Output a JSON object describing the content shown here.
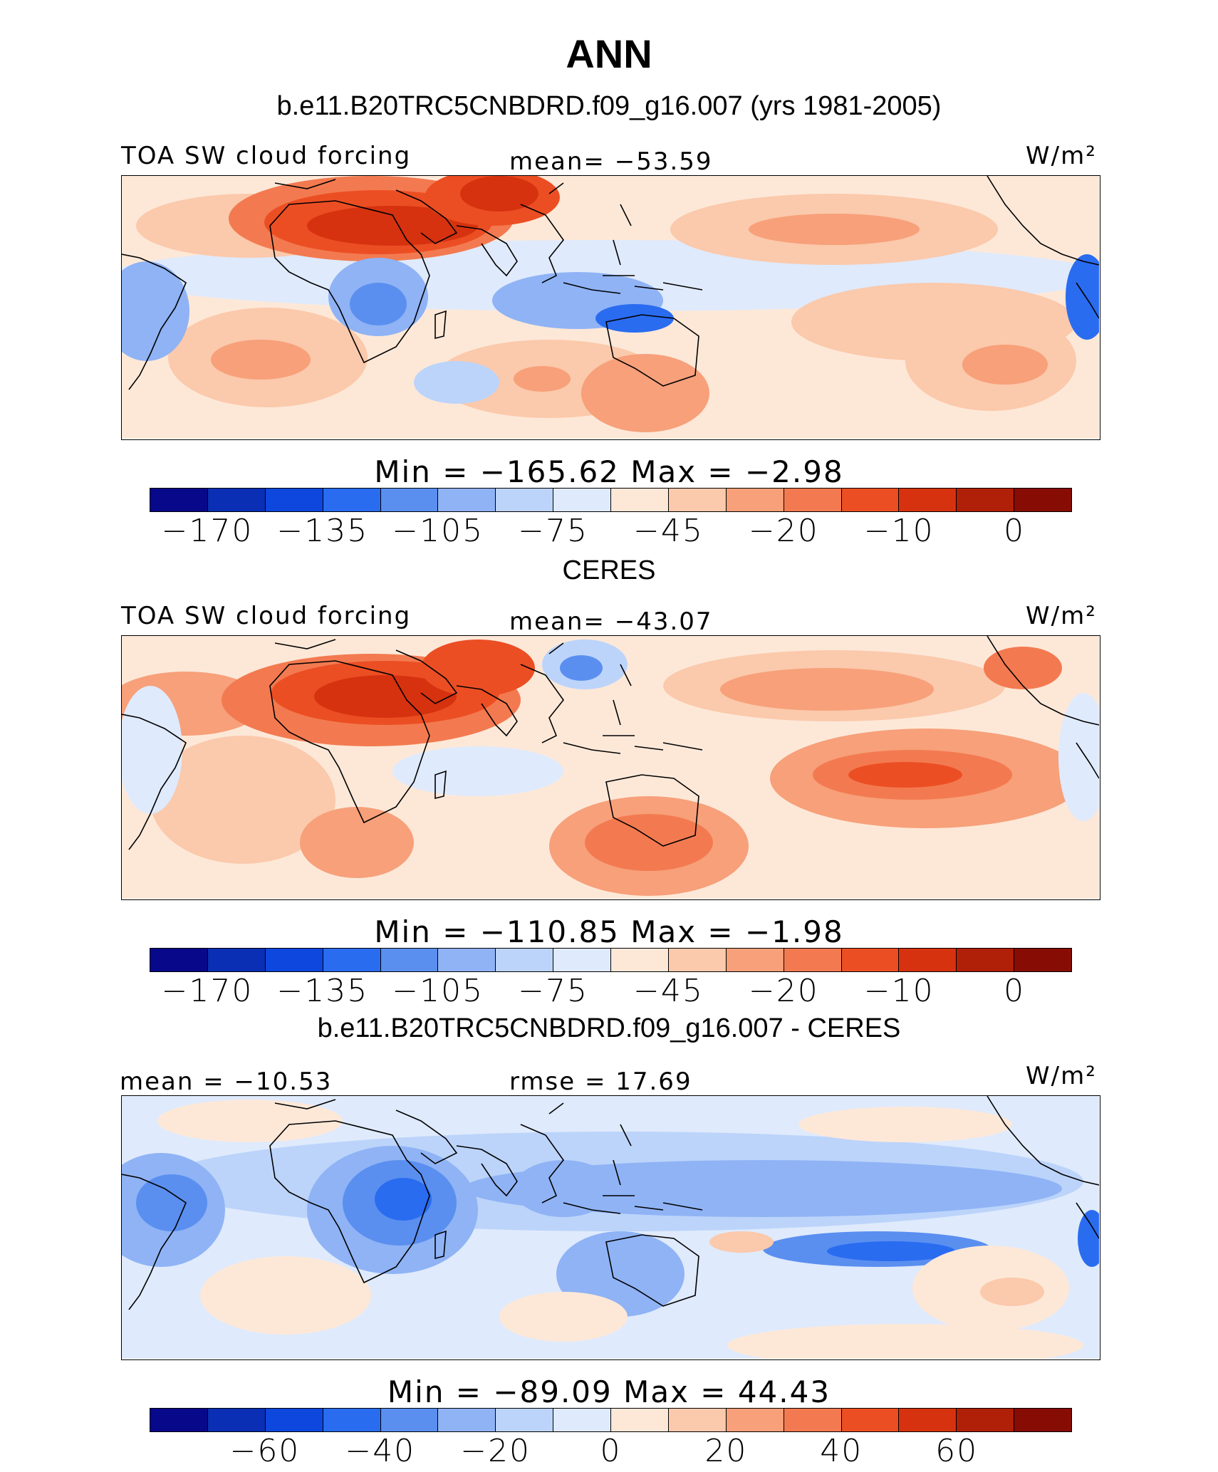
{
  "figure": {
    "title": "ANN",
    "subtitle": "b.e11.B20TRC5CNBDRD.f09_g16.007 (yrs 1981-2005)"
  },
  "chart_data": [
    {
      "type": "heatmap",
      "panel_title": "",
      "left_label": "TOA SW cloud forcing",
      "center_label": "mean=  −53.59",
      "units": "W/m²",
      "stats": "Min  =  −165.62  Max  =   −2.98",
      "min": -165.62,
      "max": -2.98,
      "mean": -53.59,
      "colorbar": {
        "ticks": [
          "−170",
          "−135",
          "−105",
          "−75",
          "−45",
          "−20",
          "−10",
          "0"
        ],
        "colors": [
          "#08088a",
          "#0a2fb5",
          "#0d47dd",
          "#2a6cf0",
          "#5a8ff0",
          "#8fb3f5",
          "#bcd4fa",
          "#dfeafc",
          "#fde8d8",
          "#fbc9ab",
          "#f7a07a",
          "#f37a50",
          "#ec4e23",
          "#d6320f",
          "#b01f08",
          "#870c04"
        ]
      }
    },
    {
      "type": "heatmap",
      "panel_title": "CERES",
      "left_label": "TOA SW cloud forcing",
      "center_label": "mean=  −43.07",
      "units": "W/m²",
      "stats": "Min  =  −110.85  Max  =   −1.98",
      "min": -110.85,
      "max": -1.98,
      "mean": -43.07,
      "colorbar": {
        "ticks": [
          "−170",
          "−135",
          "−105",
          "−75",
          "−45",
          "−20",
          "−10",
          "0"
        ],
        "colors": [
          "#08088a",
          "#0a2fb5",
          "#0d47dd",
          "#2a6cf0",
          "#5a8ff0",
          "#8fb3f5",
          "#bcd4fa",
          "#dfeafc",
          "#fde8d8",
          "#fbc9ab",
          "#f7a07a",
          "#f37a50",
          "#ec4e23",
          "#d6320f",
          "#b01f08",
          "#870c04"
        ]
      }
    },
    {
      "type": "heatmap",
      "panel_title": "b.e11.B20TRC5CNBDRD.f09_g16.007 - CERES",
      "left_label": "mean  =  −10.53",
      "center_label": "rmse  =    17.69",
      "units": "W/m²",
      "stats": "Min  =  −89.09  Max  =    44.43",
      "min": -89.09,
      "max": 44.43,
      "mean": -10.53,
      "rmse": 17.69,
      "colorbar": {
        "ticks": [
          "−60",
          "−40",
          "−20",
          "0",
          "20",
          "40",
          "60"
        ],
        "colors": [
          "#08088a",
          "#0a2fb5",
          "#0d47dd",
          "#2a6cf0",
          "#5a8ff0",
          "#8fb3f5",
          "#bcd4fa",
          "#dfeafc",
          "#fde8d8",
          "#fbc9ab",
          "#f7a07a",
          "#f37a50",
          "#ec4e23",
          "#d6320f",
          "#b01f08",
          "#870c04"
        ]
      }
    }
  ]
}
